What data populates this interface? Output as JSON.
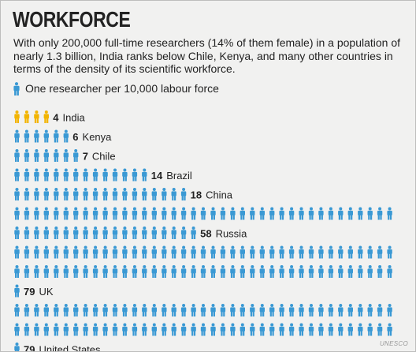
{
  "title": "WORKFORCE",
  "description": "With only 200,000 full-time researchers (14% of them female) in a population of nearly 1.3 billion, India ranks below Chile, Kenya, and many other countries in terms of the density of its scientific workforce.",
  "legend": {
    "icon": "person-icon",
    "text": "One researcher per 10,000 labour force"
  },
  "source": "UNESCO",
  "colors": {
    "default": "#3a99d4",
    "highlight": "#f2b400",
    "background": "#f1f1f0"
  },
  "chart_data": {
    "type": "bar",
    "unit": "researchers per 10,000 labour force",
    "categories": [
      "India",
      "Kenya",
      "Chile",
      "Brazil",
      "China",
      "Russia",
      "UK",
      "United States"
    ],
    "values": [
      4,
      6,
      7,
      14,
      18,
      58,
      79,
      79
    ],
    "highlight": "India",
    "xlabel": "",
    "ylabel": ""
  }
}
